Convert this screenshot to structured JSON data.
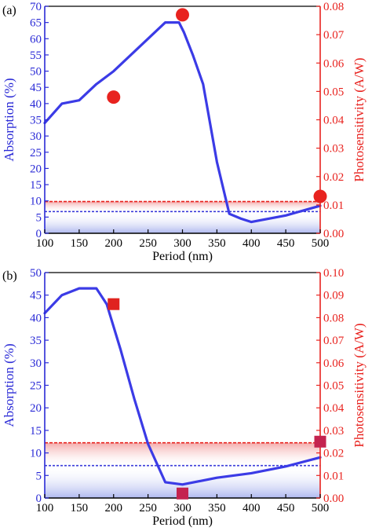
{
  "colors": {
    "left_axis": "#2a2ad6",
    "right_axis": "#e8231f",
    "absorption_line": "#3b3be6",
    "marker_a": "#e8231f",
    "marker_b_high": "#e0231f",
    "marker_b_low": "#c4234f",
    "band_red": "#f3a6a6",
    "band_blue": "#aab4ee"
  },
  "chart_data": [
    {
      "panel_label": "(a)",
      "type": "line",
      "xlabel": "Period (nm)",
      "ylabel_left": "Absorption (%)",
      "ylabel_right": "Photosensitivity (A/W)",
      "xlim": [
        100,
        500
      ],
      "ylim_left": [
        0,
        70
      ],
      "ylim_right": [
        0,
        0.08
      ],
      "x_ticks": [
        "100",
        "150",
        "200",
        "250",
        "300",
        "350",
        "400",
        "450",
        "500"
      ],
      "y_ticks_left": [
        "0",
        "5",
        "10",
        "15",
        "20",
        "25",
        "30",
        "35",
        "40",
        "45",
        "50",
        "55",
        "60",
        "65",
        "70"
      ],
      "y_ticks_right": [
        "0.00",
        "0.01",
        "0.02",
        "0.03",
        "0.04",
        "0.05",
        "0.06",
        "0.07",
        "0.08"
      ],
      "absorption": {
        "x": [
          100,
          125,
          150,
          175,
          200,
          225,
          250,
          275,
          295,
          302,
          315,
          330,
          350,
          368,
          385,
          400,
          450,
          500
        ],
        "y": [
          34,
          40,
          41,
          46,
          50,
          55,
          60,
          65,
          65,
          62,
          55,
          46,
          22,
          6,
          4.5,
          3.5,
          5.5,
          8.5
        ]
      },
      "photosensitivity": {
        "marker": "circle",
        "x": [
          200,
          300,
          500
        ],
        "y": [
          0.048,
          0.077,
          0.013
        ]
      },
      "band_red_top": 0.0112,
      "band_blue_top": 6.7
    },
    {
      "panel_label": "(b)",
      "type": "line",
      "xlabel": "Period (nm)",
      "ylabel_left": "Absorption (%)",
      "ylabel_right": "Photosensitivity (A/W)",
      "xlim": [
        100,
        500
      ],
      "ylim_left": [
        0,
        50
      ],
      "ylim_right": [
        0,
        0.1
      ],
      "x_ticks": [
        "100",
        "150",
        "200",
        "250",
        "300",
        "350",
        "400",
        "450",
        "500"
      ],
      "y_ticks_left": [
        "0",
        "5",
        "10",
        "15",
        "20",
        "25",
        "30",
        "35",
        "40",
        "45",
        "50"
      ],
      "y_ticks_right": [
        "0.00",
        "0.01",
        "0.02",
        "0.03",
        "0.04",
        "0.05",
        "0.06",
        "0.07",
        "0.08",
        "0.09",
        "0.10"
      ],
      "absorption": {
        "x": [
          100,
          125,
          150,
          175,
          190,
          210,
          230,
          250,
          275,
          300,
          350,
          400,
          450,
          500
        ],
        "y": [
          41,
          45,
          46.5,
          46.5,
          43,
          33,
          22,
          12,
          3.5,
          3,
          4.5,
          5.5,
          7,
          9
        ]
      },
      "photosensitivity": {
        "marker": "square",
        "x": [
          200,
          300,
          500
        ],
        "y": [
          0.086,
          0.002,
          0.025
        ]
      },
      "band_red_top": 0.0245,
      "band_blue_top": 7.2
    }
  ]
}
